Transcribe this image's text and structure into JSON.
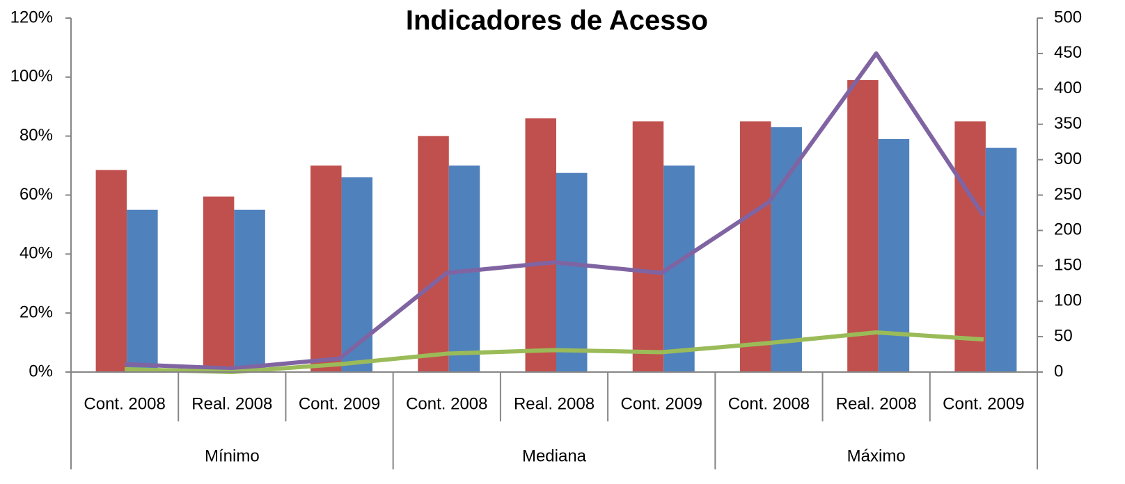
{
  "chart_data": {
    "type": "bar",
    "title": "Indicadores de Acesso",
    "categories": [
      "Cont. 2008",
      "Real. 2008",
      "Cont. 2009",
      "Cont. 2008",
      "Real. 2008",
      "Cont. 2009",
      "Cont. 2008",
      "Real. 2008",
      "Cont. 2009"
    ],
    "groups": [
      "Mínimo",
      "Mediana",
      "Máximo"
    ],
    "series": [
      {
        "type": "bar",
        "color": "#c0504d",
        "values": [
          68.5,
          59.5,
          70,
          80,
          86,
          85,
          85,
          99,
          85
        ]
      },
      {
        "type": "bar",
        "color": "#4f81bd",
        "values": [
          55,
          55,
          66,
          70,
          67.5,
          70,
          83,
          79,
          76
        ]
      },
      {
        "type": "line",
        "axis": "y2",
        "color": "#8064a2",
        "values": [
          11,
          5,
          19,
          140,
          155,
          140,
          240,
          450,
          221
        ]
      },
      {
        "type": "line",
        "axis": "y2",
        "color": "#9bbb59",
        "values": [
          4,
          0,
          11,
          26,
          31,
          28,
          41,
          56,
          46
        ]
      }
    ],
    "ylim": [
      0,
      120
    ],
    "yticks": [
      {
        "value": 0,
        "label": "0%"
      },
      {
        "value": 20,
        "label": "20%"
      },
      {
        "value": 40,
        "label": "40%"
      },
      {
        "value": 60,
        "label": "60%"
      },
      {
        "value": 80,
        "label": "80%"
      },
      {
        "value": 100,
        "label": "100%"
      },
      {
        "value": 120,
        "label": "120%"
      }
    ],
    "y2lim": [
      0,
      500
    ],
    "y2ticks": [
      0,
      50,
      100,
      150,
      200,
      250,
      300,
      350,
      400,
      450,
      500
    ],
    "grid": false
  }
}
